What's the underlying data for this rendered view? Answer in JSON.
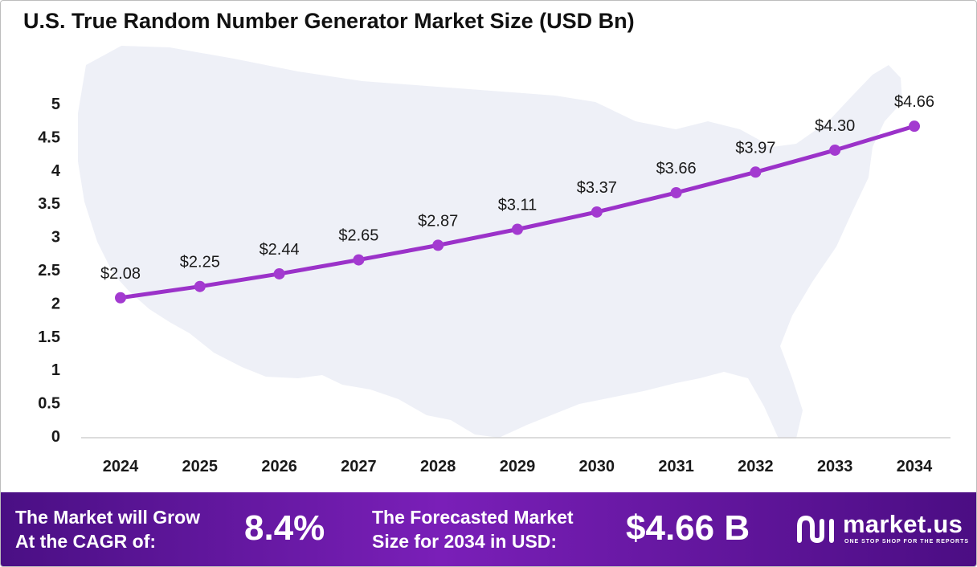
{
  "title": "U.S. True Random Number Generator Market Size (USD Bn)",
  "colors": {
    "line": "#9b32c9",
    "marker": "#a33ad0",
    "map": "#eef0f7",
    "banner_start": "#4a0f84",
    "banner_mid": "#7a1fb8"
  },
  "chart_data": {
    "type": "line",
    "x": [
      "2024",
      "2025",
      "2026",
      "2027",
      "2028",
      "2029",
      "2030",
      "2031",
      "2032",
      "2033",
      "2034"
    ],
    "series": [
      {
        "values": [
          2.08,
          2.25,
          2.44,
          2.65,
          2.87,
          3.11,
          3.37,
          3.66,
          3.97,
          4.3,
          4.66
        ]
      }
    ],
    "data_labels": [
      "$2.08",
      "$2.25",
      "$2.44",
      "$2.65",
      "$2.87",
      "$3.11",
      "$3.37",
      "$3.66",
      "$3.97",
      "$4.30",
      "$4.66"
    ],
    "y_ticks": [
      "0",
      "0.5",
      "1",
      "1.5",
      "2",
      "2.5",
      "3",
      "3.5",
      "4",
      "4.5",
      "5"
    ],
    "ylim": [
      0,
      5
    ],
    "grid": false,
    "background_image": "us-map-silhouette"
  },
  "banner": {
    "cagr_label_line1": "The Market will Grow",
    "cagr_label_line2": "At the CAGR of:",
    "cagr_value": "8.4%",
    "forecast_label_line1": "The Forecasted Market",
    "forecast_label_line2": "Size for 2034 in USD:",
    "forecast_value": "$4.66 B"
  },
  "logo": {
    "icon": "market-us-logo-icon",
    "name": "market.us",
    "tagline": "ONE STOP SHOP FOR THE REPORTS"
  }
}
